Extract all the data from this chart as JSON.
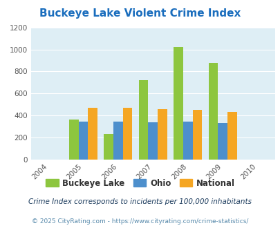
{
  "title": "Buckeye Lake Violent Crime Index",
  "years": [
    2004,
    2005,
    2006,
    2007,
    2008,
    2009,
    2010
  ],
  "bar_years": [
    2005,
    2006,
    2007,
    2008,
    2009
  ],
  "buckeye_lake": [
    365,
    235,
    720,
    1020,
    880
  ],
  "ohio": [
    345,
    345,
    340,
    345,
    330
  ],
  "national": [
    470,
    470,
    460,
    450,
    435
  ],
  "color_buckeye": "#8dc63f",
  "color_ohio": "#4d8fcc",
  "color_national": "#f5a623",
  "xlim": [
    2003.5,
    2010.5
  ],
  "ylim": [
    0,
    1200
  ],
  "yticks": [
    0,
    200,
    400,
    600,
    800,
    1000,
    1200
  ],
  "bg_color": "#deeef5",
  "title_color": "#1a6dbd",
  "footnote1": "Crime Index corresponds to incidents per 100,000 inhabitants",
  "footnote2": "© 2025 CityRating.com - https://www.cityrating.com/crime-statistics/",
  "bar_width": 0.27
}
